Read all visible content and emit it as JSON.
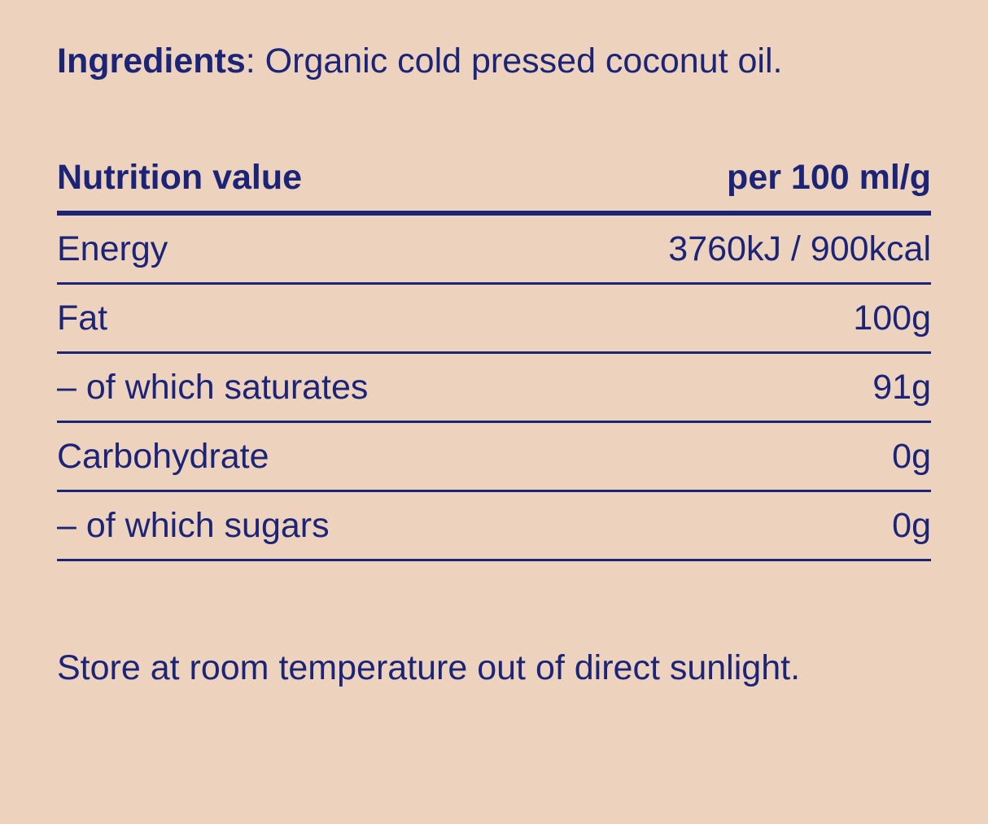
{
  "theme": {
    "background_color": "#edd3bd",
    "text_color": "#1c2477"
  },
  "ingredients": {
    "label": "Ingredients",
    "separator": ": ",
    "text": "Organic cold pressed coconut oil."
  },
  "nutrition_table": {
    "header": {
      "left": "Nutrition value",
      "right": "per 100 ml/g"
    },
    "rows": [
      {
        "name": "Energy",
        "value": "3760kJ / 900kcal"
      },
      {
        "name": "Fat",
        "value": "100g"
      },
      {
        "name": "– of which saturates",
        "value": "91g"
      },
      {
        "name": "Carbohydrate",
        "value": "0g"
      },
      {
        "name": "– of which sugars",
        "value": "0g"
      }
    ]
  },
  "storage_note": "Store at room temperature out of direct sunlight."
}
